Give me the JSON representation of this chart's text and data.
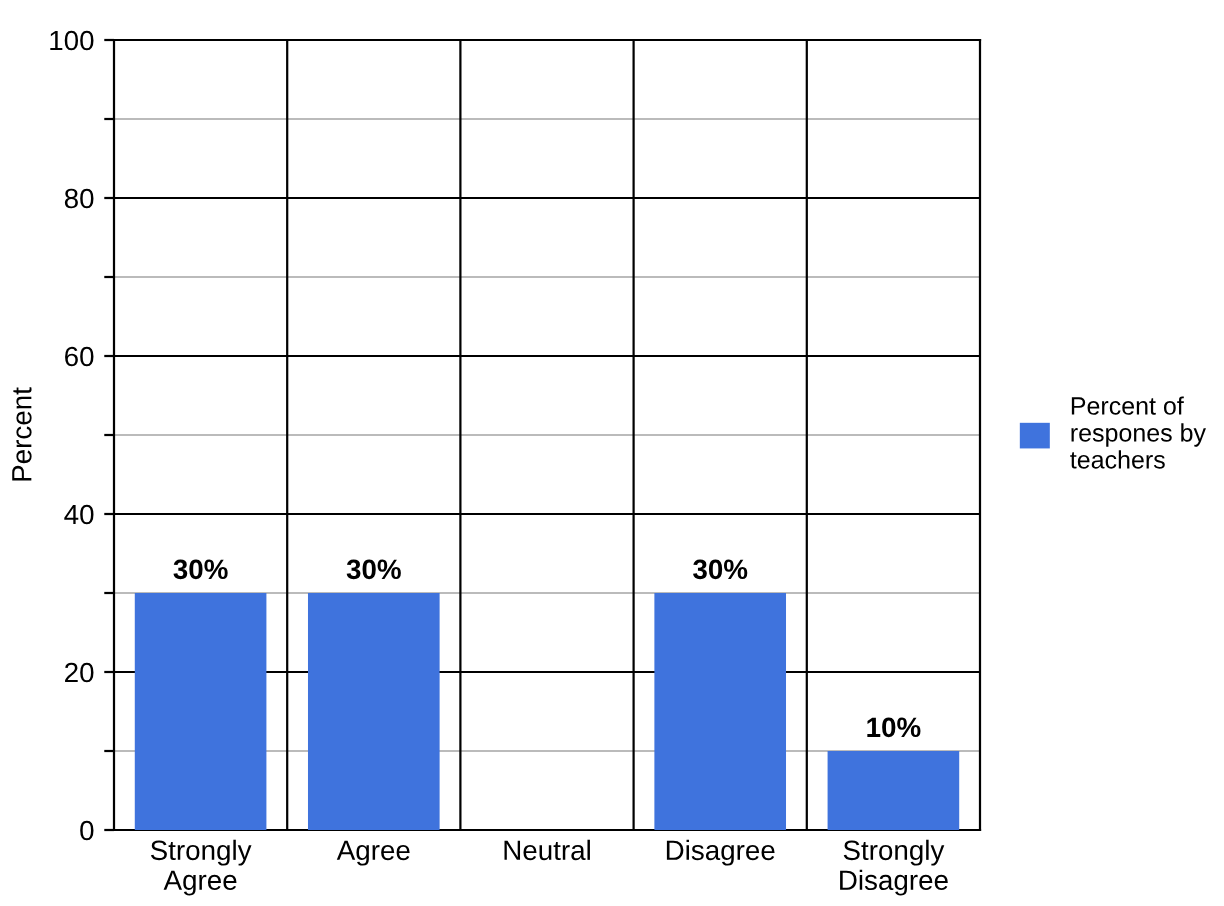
{
  "chart_data": {
    "type": "bar",
    "ylabel": "Percent",
    "categories": [
      "Strongly\nAgree",
      "Agree",
      "Neutral",
      "Disagree",
      "Strongly\nDisagree"
    ],
    "series": [
      {
        "name": "Percent of\nrespones by\nteachers",
        "color": "#3f73dd",
        "values": [
          30,
          30,
          0,
          30,
          10
        ],
        "value_labels": [
          "30%",
          "30%",
          null,
          "30%",
          "10%"
        ]
      }
    ],
    "ylim": [
      0,
      100
    ],
    "yticks": [
      0,
      {
        "value": 10,
        "label": null
      },
      20,
      {
        "value": 30,
        "label": null
      },
      40,
      {
        "value": 50,
        "label": null
      },
      60,
      {
        "value": 70,
        "label": null
      },
      80,
      {
        "value": 90,
        "label": null
      },
      100
    ],
    "grid": true,
    "legend": "right"
  }
}
